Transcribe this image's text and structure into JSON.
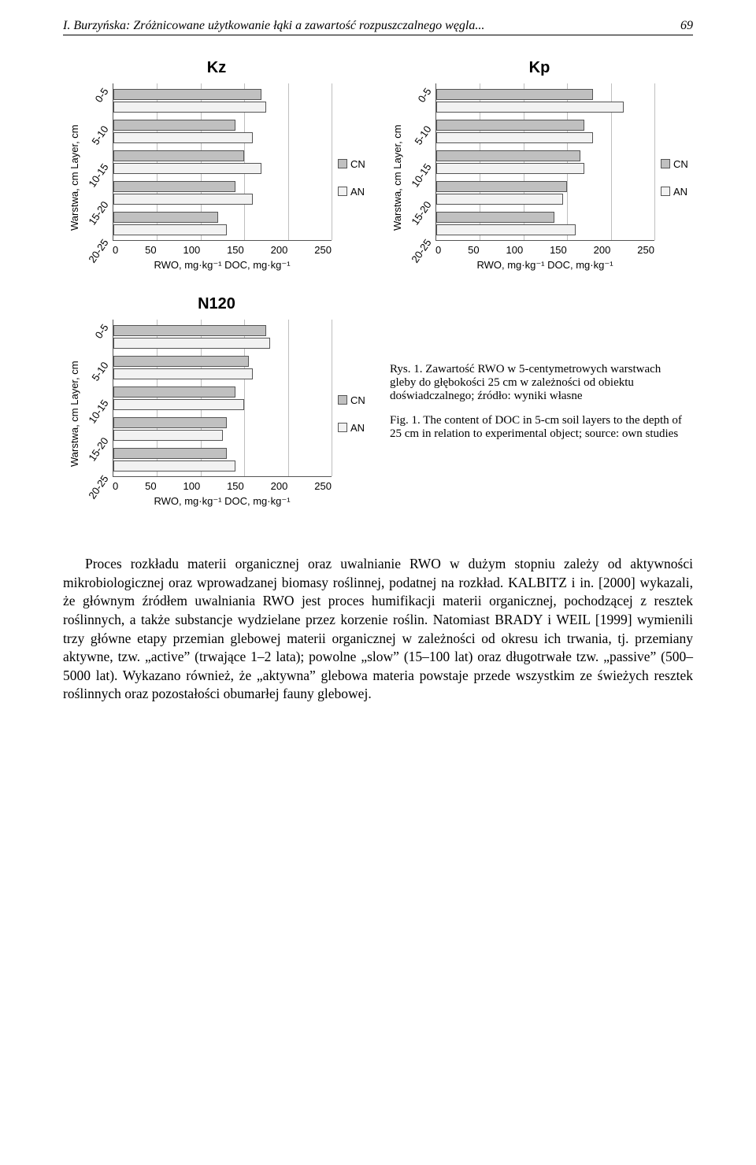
{
  "page": {
    "running_head": "I. Burzyńska: Zróżnicowane użytkowanie łąki a zawartość rozpuszczalnego węgla...",
    "page_number": "69"
  },
  "colors": {
    "bar_cn": "#c0c0c0",
    "bar_an": "#f2f2f2",
    "bar_border": "#555555",
    "grid": "#bfbfbf",
    "axis": "#555555",
    "bg": "#ffffff"
  },
  "axis": {
    "y_label": "Warstwa, cm   Layer, cm",
    "x_label": "RWO, mg·kg⁻¹   DOC, mg·kg⁻¹",
    "x_ticks": [
      "0",
      "50",
      "100",
      "150",
      "200",
      "250"
    ],
    "x_max": 250,
    "y_categories": [
      "0-5",
      "5-10",
      "10-15",
      "15-20",
      "20-25"
    ],
    "tick_fontsize": 13,
    "label_fontsize": 13
  },
  "legend": {
    "items": [
      {
        "label": "CN",
        "color": "#c0c0c0"
      },
      {
        "label": "AN",
        "color": "#f2f2f2"
      }
    ]
  },
  "charts": {
    "kz": {
      "title": "Kz",
      "series": {
        "CN": [
          170,
          140,
          150,
          140,
          120
        ],
        "AN": [
          175,
          160,
          170,
          160,
          130
        ]
      }
    },
    "kp": {
      "title": "Kp",
      "series": {
        "CN": [
          180,
          170,
          165,
          150,
          135
        ],
        "AN": [
          215,
          180,
          170,
          145,
          160
        ]
      }
    },
    "n120": {
      "title": "N120",
      "series": {
        "CN": [
          175,
          155,
          140,
          130,
          130
        ],
        "AN": [
          180,
          160,
          150,
          125,
          140
        ]
      }
    }
  },
  "captions": {
    "pl": "Rys. 1. Zawartość RWO w 5-centymetrowych warstwach gleby do głębokości 25 cm w zależności od obiektu doświadczalnego; źródło: wyniki własne",
    "en": "Fig. 1. The content of DOC in 5-cm soil layers to the depth of 25 cm in relation to experimental object; source: own studies"
  },
  "body": {
    "p1": "Proces rozkładu materii organicznej oraz uwalnianie RWO w dużym stopniu zależy od aktywności mikrobiologicznej oraz wprowadzanej biomasy roślinnej, podatnej na rozkład. KALBITZ i in. [2000] wykazali, że głównym źródłem uwalniania RWO jest proces humifikacji materii organicznej, pochodzącej z resztek roślinnych, a także substancje wydzielane przez korzenie roślin. Natomiast BRADY i WEIL [1999] wymienili trzy główne etapy przemian glebowej materii organicznej w zależności od okresu ich trwania, tj. przemiany aktywne, tzw. „active” (trwające 1–2 lata); powolne „slow” (15–100 lat) oraz długotrwałe tzw. „passive” (500–5000 lat). Wykazano również, że „aktywna” glebowa materia powstaje przede wszystkim ze świeżych resztek roślinnych oraz pozostałości obumarłej fauny glebowej."
  }
}
